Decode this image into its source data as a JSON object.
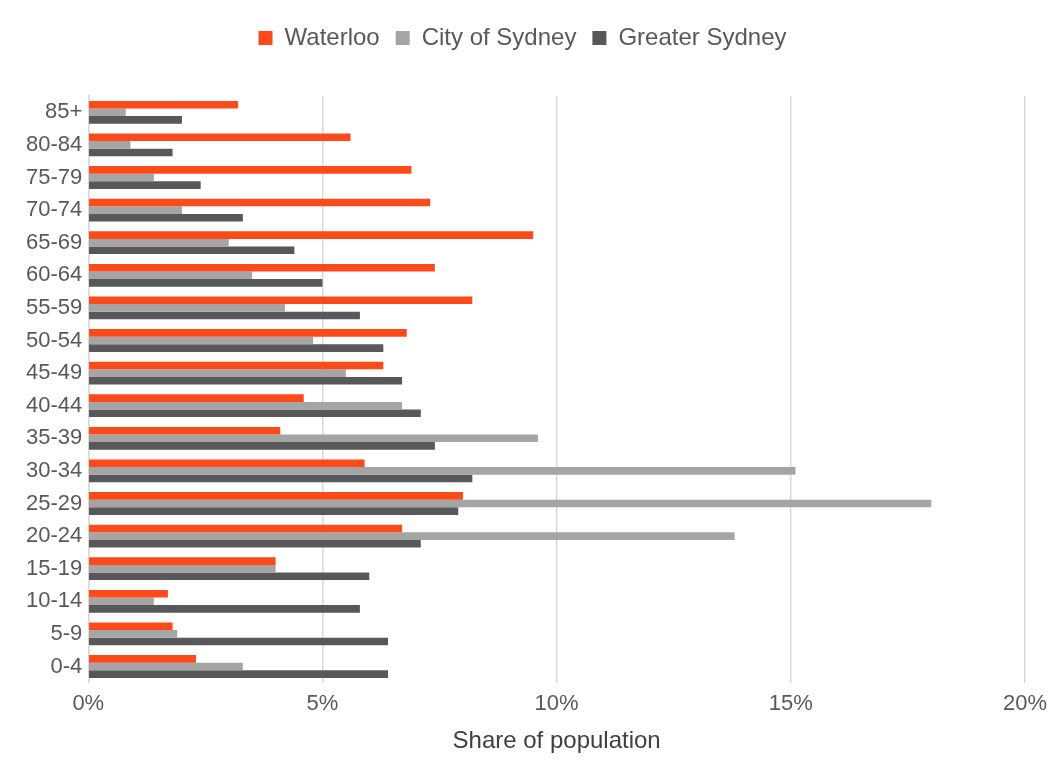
{
  "chart_data": {
    "type": "bar",
    "orientation": "horizontal",
    "xlabel": "Share of population",
    "categories": [
      "85+",
      "80-84",
      "75-79",
      "70-74",
      "65-69",
      "60-64",
      "55-59",
      "50-54",
      "45-49",
      "40-44",
      "35-39",
      "30-34",
      "25-29",
      "20-24",
      "15-19",
      "10-14",
      "5-9",
      "0-4"
    ],
    "series": [
      {
        "name": "Waterloo",
        "color": "#fc4a1a",
        "values": [
          3.2,
          5.6,
          6.9,
          7.3,
          9.5,
          7.4,
          8.2,
          6.8,
          6.3,
          4.6,
          4.1,
          5.9,
          8.0,
          6.7,
          4.0,
          1.7,
          1.8,
          2.3
        ]
      },
      {
        "name": "City of Sydney",
        "color": "#a5a5a5",
        "values": [
          0.8,
          0.9,
          1.4,
          2.0,
          3.0,
          3.5,
          4.2,
          4.8,
          5.5,
          6.7,
          9.6,
          15.1,
          18.0,
          13.8,
          4.0,
          1.4,
          1.9,
          3.3
        ]
      },
      {
        "name": "Greater Sydney",
        "color": "#58585a",
        "values": [
          2.0,
          1.8,
          2.4,
          3.3,
          4.4,
          5.0,
          5.8,
          6.3,
          6.7,
          7.1,
          7.4,
          8.2,
          7.9,
          7.1,
          6.0,
          5.8,
          6.4,
          6.4
        ]
      }
    ],
    "xlim": [
      0,
      20
    ],
    "xticks": [
      {
        "value": 0,
        "label": "0%"
      },
      {
        "value": 5,
        "label": "5%"
      },
      {
        "value": 10,
        "label": "10%"
      },
      {
        "value": 15,
        "label": "15%"
      },
      {
        "value": 20,
        "label": "20%"
      }
    ],
    "grid": "x",
    "legend": "top"
  }
}
